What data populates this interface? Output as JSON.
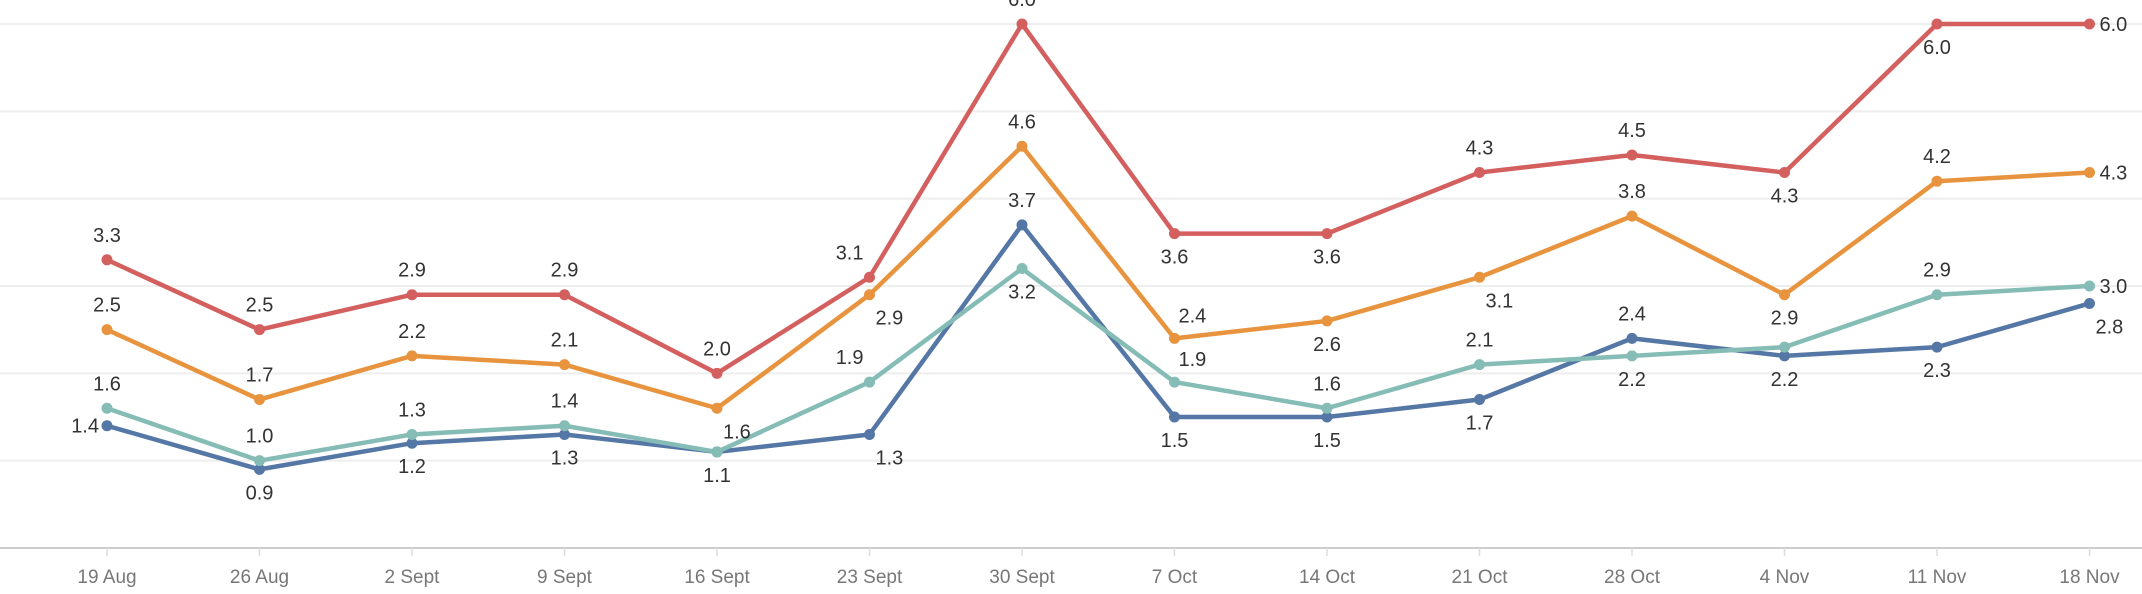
{
  "chart_data": {
    "type": "line",
    "title": "",
    "xlabel": "",
    "ylabel": "",
    "ylim": [
      0,
      6
    ],
    "grid": true,
    "categories": [
      "19 Aug",
      "26 Aug",
      "2 Sept",
      "9 Sept",
      "16 Sept",
      "23 Sept",
      "30 Sept",
      "7 Oct",
      "14 Oct",
      "21 Oct",
      "28 Oct",
      "4 Nov",
      "11 Nov",
      "18 Nov"
    ],
    "series": [
      {
        "name": "red",
        "color": "#d45f5f",
        "values": [
          3.3,
          2.5,
          2.9,
          2.9,
          2.0,
          3.1,
          6.0,
          3.6,
          3.6,
          4.3,
          4.5,
          4.3,
          6.0,
          6.0
        ],
        "labels": [
          "3.3",
          "2.5",
          "2.9",
          "2.9",
          "2.0",
          "3.1",
          "6.0",
          "3.6",
          "3.6",
          "4.3",
          "4.5",
          "4.3",
          "6.0",
          "6.0"
        ]
      },
      {
        "name": "orange",
        "color": "#e8943f",
        "values": [
          2.5,
          1.7,
          2.2,
          2.1,
          1.6,
          2.9,
          4.6,
          2.4,
          2.6,
          3.1,
          3.8,
          2.9,
          4.2,
          4.3
        ],
        "labels": [
          "2.5",
          "1.7",
          "2.2",
          "2.1",
          "1.6",
          "2.9",
          "4.6",
          "2.4",
          "2.6",
          "3.1",
          "3.8",
          "2.9",
          "4.2",
          "4.3"
        ]
      },
      {
        "name": "teal",
        "color": "#85bcb5",
        "values": [
          1.6,
          1.0,
          1.3,
          1.4,
          1.1,
          1.9,
          3.2,
          1.9,
          1.6,
          2.1,
          2.2,
          2.3,
          2.9,
          3.0
        ],
        "labels": [
          "1.6",
          "1.0",
          "1.3",
          "1.4",
          "",
          "1.9",
          "3.2",
          "1.9",
          "1.6",
          "2.1",
          "2.2",
          "",
          "2.9",
          "3.0"
        ]
      },
      {
        "name": "blue",
        "color": "#5577a6",
        "values": [
          1.4,
          0.9,
          1.2,
          1.3,
          1.1,
          1.3,
          3.7,
          1.5,
          1.5,
          1.7,
          2.4,
          2.2,
          2.3,
          2.8
        ],
        "labels": [
          "1.4",
          "0.9",
          "1.2",
          "1.3",
          "1.1",
          "1.3",
          "3.7",
          "1.5",
          "1.5",
          "1.7",
          "2.4",
          "2.2",
          "2.3",
          "2.8"
        ]
      }
    ]
  }
}
